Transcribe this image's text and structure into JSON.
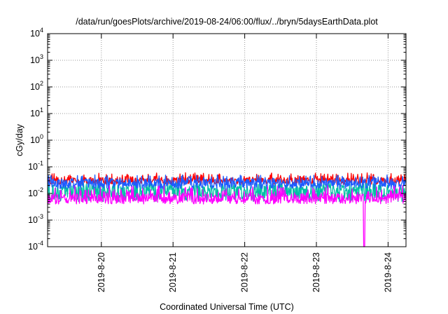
{
  "chart_data": {
    "type": "line",
    "title": "/data/run/goesPlots/archive/2019-08-24/06:00/flux/../bryn/5daysEarthData.plot",
    "xlabel": "Coordinated Universal Time (UTC)",
    "ylabel": "cGy/day",
    "y_scale": "log",
    "ylim": [
      0.0001,
      10000
    ],
    "y_tick_labels": [
      {
        "base": "10",
        "exp": "-4"
      },
      {
        "base": "10",
        "exp": "-3"
      },
      {
        "base": "10",
        "exp": "-2"
      },
      {
        "base": "10",
        "exp": "-1"
      },
      {
        "base": "10",
        "exp": "0"
      },
      {
        "base": "10",
        "exp": "1"
      },
      {
        "base": "10",
        "exp": "2"
      },
      {
        "base": "10",
        "exp": "3"
      },
      {
        "base": "10",
        "exp": "4"
      }
    ],
    "x_tick_labels": [
      "2019-8-20",
      "2019-8-21",
      "2019-8-22",
      "2019-8-23",
      "2019-8-24"
    ],
    "xlim": [
      "2019-08-19T06:00",
      "2019-08-24T06:00"
    ],
    "grid": true,
    "legend": "none",
    "series": [
      {
        "color": "#ff0000",
        "typical": 0.032,
        "low": 0.022,
        "high": 0.06
      },
      {
        "color": "#00bfa5",
        "typical": 0.013,
        "low": 0.005,
        "high": 0.025
      },
      {
        "color": "#1e5bff",
        "typical": 0.026,
        "low": 0.015,
        "high": 0.05
      },
      {
        "color": "#ff00ff",
        "typical": 0.007,
        "low": 0.004,
        "high": 0.02
      }
    ],
    "annotations": [
      {
        "note": "magenta dropout below 10^-4",
        "x": "2019-08-23T16:00"
      }
    ]
  }
}
